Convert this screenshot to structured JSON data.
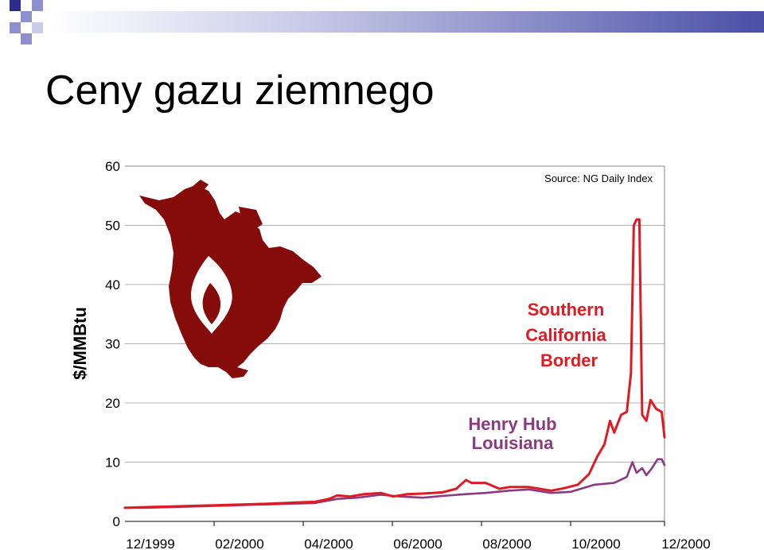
{
  "slide": {
    "title": "Ceny gazu ziemnego"
  },
  "chart_data": {
    "type": "line",
    "ylabel": "$/MMBtu",
    "ylim": [
      0,
      60
    ],
    "yticks": [
      0,
      10,
      20,
      30,
      40,
      50,
      60
    ],
    "grid": true,
    "source_note": "Source: NG Daily Index",
    "x_tick_labels": [
      "12/1999",
      "02/2000",
      "04/2000",
      "06/2000",
      "08/2000",
      "10/2000",
      "12/2000"
    ],
    "series": [
      {
        "name": "Southern California Border",
        "label_lines": [
          "Southern",
          "California",
          "Border"
        ],
        "color": "#e01a22",
        "points": [
          [
            "1999-12-01",
            2.3
          ],
          [
            "1999-12-15",
            2.4
          ],
          [
            "2000-01-01",
            2.5
          ],
          [
            "2000-01-15",
            2.6
          ],
          [
            "2000-02-01",
            2.7
          ],
          [
            "2000-02-15",
            2.8
          ],
          [
            "2000-03-01",
            2.9
          ],
          [
            "2000-03-15",
            3.0
          ],
          [
            "2000-04-01",
            3.2
          ],
          [
            "2000-04-15",
            3.3
          ],
          [
            "2000-04-25",
            3.8
          ],
          [
            "2000-05-01",
            4.4
          ],
          [
            "2000-05-10",
            4.2
          ],
          [
            "2000-05-20",
            4.6
          ],
          [
            "2000-06-01",
            4.8
          ],
          [
            "2000-06-10",
            4.2
          ],
          [
            "2000-06-20",
            4.6
          ],
          [
            "2000-07-01",
            4.7
          ],
          [
            "2000-07-15",
            4.9
          ],
          [
            "2000-07-25",
            5.5
          ],
          [
            "2000-08-01",
            7.0
          ],
          [
            "2000-08-05",
            6.5
          ],
          [
            "2000-08-15",
            6.5
          ],
          [
            "2000-08-25",
            5.5
          ],
          [
            "2000-09-01",
            5.8
          ],
          [
            "2000-09-15",
            5.8
          ],
          [
            "2000-10-01",
            5.2
          ],
          [
            "2000-10-10",
            5.6
          ],
          [
            "2000-10-20",
            6.2
          ],
          [
            "2000-10-28",
            8.0
          ],
          [
            "2000-11-03",
            11.0
          ],
          [
            "2000-11-08",
            13.0
          ],
          [
            "2000-11-12",
            17.0
          ],
          [
            "2000-11-15",
            15.0
          ],
          [
            "2000-11-20",
            18.0
          ],
          [
            "2000-11-24",
            18.5
          ],
          [
            "2000-11-27",
            25.0
          ],
          [
            "2000-11-29",
            50.0
          ],
          [
            "2000-12-01",
            51.0
          ],
          [
            "2000-12-03",
            51.0
          ],
          [
            "2000-12-05",
            18.0
          ],
          [
            "2000-12-08",
            17.0
          ],
          [
            "2000-12-11",
            20.5
          ],
          [
            "2000-12-15",
            19.0
          ],
          [
            "2000-12-19",
            18.5
          ],
          [
            "2000-12-21",
            14.2
          ]
        ]
      },
      {
        "name": "Henry Hub Louisiana",
        "label_lines": [
          "Henry Hub",
          "Louisiana"
        ],
        "color": "#8b3a82",
        "points": [
          [
            "1999-12-01",
            2.3
          ],
          [
            "1999-12-15",
            2.3
          ],
          [
            "2000-01-01",
            2.4
          ],
          [
            "2000-01-15",
            2.5
          ],
          [
            "2000-02-01",
            2.6
          ],
          [
            "2000-02-15",
            2.7
          ],
          [
            "2000-03-01",
            2.8
          ],
          [
            "2000-03-15",
            2.9
          ],
          [
            "2000-04-01",
            3.0
          ],
          [
            "2000-04-15",
            3.1
          ],
          [
            "2000-05-01",
            3.8
          ],
          [
            "2000-05-15",
            4.0
          ],
          [
            "2000-06-01",
            4.5
          ],
          [
            "2000-06-15",
            4.2
          ],
          [
            "2000-07-01",
            4.0
          ],
          [
            "2000-07-15",
            4.3
          ],
          [
            "2000-08-01",
            4.6
          ],
          [
            "2000-08-15",
            4.8
          ],
          [
            "2000-09-01",
            5.2
          ],
          [
            "2000-09-15",
            5.4
          ],
          [
            "2000-10-01",
            4.8
          ],
          [
            "2000-10-15",
            5.0
          ],
          [
            "2000-11-01",
            6.2
          ],
          [
            "2000-11-15",
            6.5
          ],
          [
            "2000-11-24",
            7.5
          ],
          [
            "2000-11-28",
            10.0
          ],
          [
            "2000-12-01",
            8.2
          ],
          [
            "2000-12-05",
            9.0
          ],
          [
            "2000-12-08",
            7.8
          ],
          [
            "2000-12-12",
            9.0
          ],
          [
            "2000-12-16",
            10.5
          ],
          [
            "2000-12-19",
            10.5
          ],
          [
            "2000-12-21",
            9.5
          ]
        ]
      }
    ]
  }
}
